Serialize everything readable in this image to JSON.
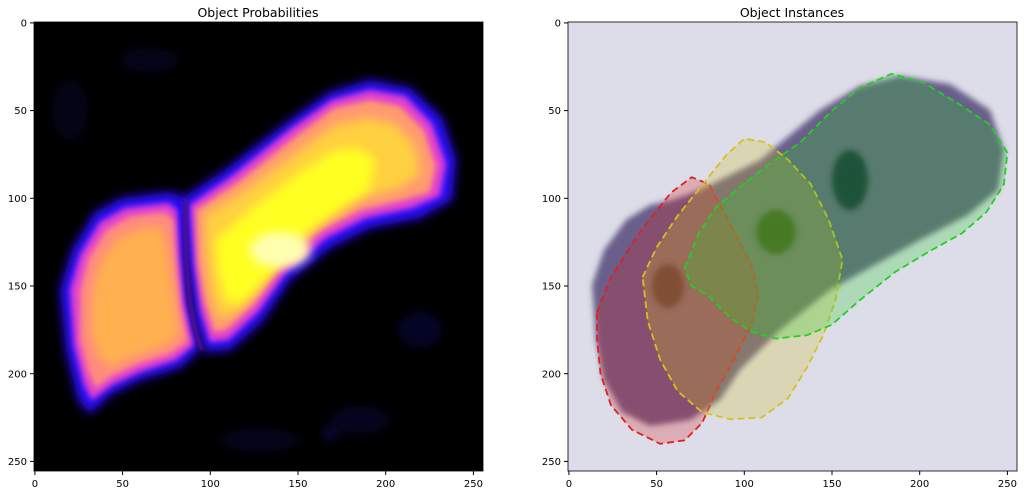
{
  "figure": {
    "panels": [
      {
        "title": "Object Probabilities",
        "xticks": [
          "0",
          "50",
          "100",
          "150",
          "200",
          "250"
        ],
        "yticks": [
          "0",
          "50",
          "100",
          "150",
          "200",
          "250"
        ]
      },
      {
        "title": "Object Instances",
        "xticks": [
          "0",
          "50",
          "100",
          "150",
          "200",
          "250"
        ],
        "yticks": [
          "0",
          "50",
          "100",
          "150",
          "200",
          "250"
        ]
      }
    ]
  },
  "chart_data": [
    {
      "type": "heatmap",
      "title": "Object Probabilities",
      "xlim": [
        0,
        256
      ],
      "ylim": [
        256,
        0
      ],
      "colormap": "gnuplot2",
      "regions": [
        {
          "name": "left-object",
          "level": "high",
          "center": [
            55,
            160
          ]
        },
        {
          "name": "right-object",
          "level": "very-high",
          "center": [
            140,
            130
          ]
        }
      ]
    },
    {
      "type": "image-overlay",
      "title": "Object Instances",
      "xlim": [
        0,
        256
      ],
      "ylim": [
        256,
        0
      ],
      "instances": [
        {
          "color": "#e02020",
          "polygon": [
            [
              16,
              165
            ],
            [
              24,
              145
            ],
            [
              40,
              120
            ],
            [
              58,
              97
            ],
            [
              70,
              88
            ],
            [
              80,
              92
            ],
            [
              92,
              115
            ],
            [
              104,
              138
            ],
            [
              108,
              155
            ],
            [
              104,
              172
            ],
            [
              94,
              192
            ],
            [
              84,
              210
            ],
            [
              76,
              228
            ],
            [
              66,
              238
            ],
            [
              52,
              240
            ],
            [
              36,
              232
            ],
            [
              24,
              218
            ],
            [
              18,
              200
            ],
            [
              16,
              180
            ]
          ]
        },
        {
          "color": "#d4c21a",
          "polygon": [
            [
              42,
              145
            ],
            [
              50,
              128
            ],
            [
              62,
              110
            ],
            [
              78,
              90
            ],
            [
              90,
              75
            ],
            [
              100,
              66
            ],
            [
              112,
              68
            ],
            [
              125,
              78
            ],
            [
              138,
              92
            ],
            [
              148,
              112
            ],
            [
              156,
              135
            ],
            [
              152,
              158
            ],
            [
              145,
              178
            ],
            [
              136,
              196
            ],
            [
              125,
              214
            ],
            [
              110,
              225
            ],
            [
              92,
              226
            ],
            [
              76,
              222
            ],
            [
              62,
              210
            ],
            [
              52,
              192
            ],
            [
              45,
              170
            ]
          ]
        },
        {
          "color": "#22d022",
          "polygon": [
            [
              66,
              140
            ],
            [
              74,
              120
            ],
            [
              84,
              105
            ],
            [
              96,
              95
            ],
            [
              112,
              82
            ],
            [
              132,
              68
            ],
            [
              150,
              50
            ],
            [
              166,
              37
            ],
            [
              184,
              29
            ],
            [
              202,
              34
            ],
            [
              222,
              46
            ],
            [
              240,
              58
            ],
            [
              250,
              74
            ],
            [
              248,
              92
            ],
            [
              238,
              108
            ],
            [
              224,
              120
            ],
            [
              206,
              130
            ],
            [
              186,
              142
            ],
            [
              166,
              158
            ],
            [
              150,
              172
            ],
            [
              136,
              178
            ],
            [
              118,
              180
            ],
            [
              104,
              176
            ],
            [
              92,
              168
            ],
            [
              80,
              156
            ],
            [
              70,
              150
            ]
          ]
        }
      ]
    }
  ]
}
